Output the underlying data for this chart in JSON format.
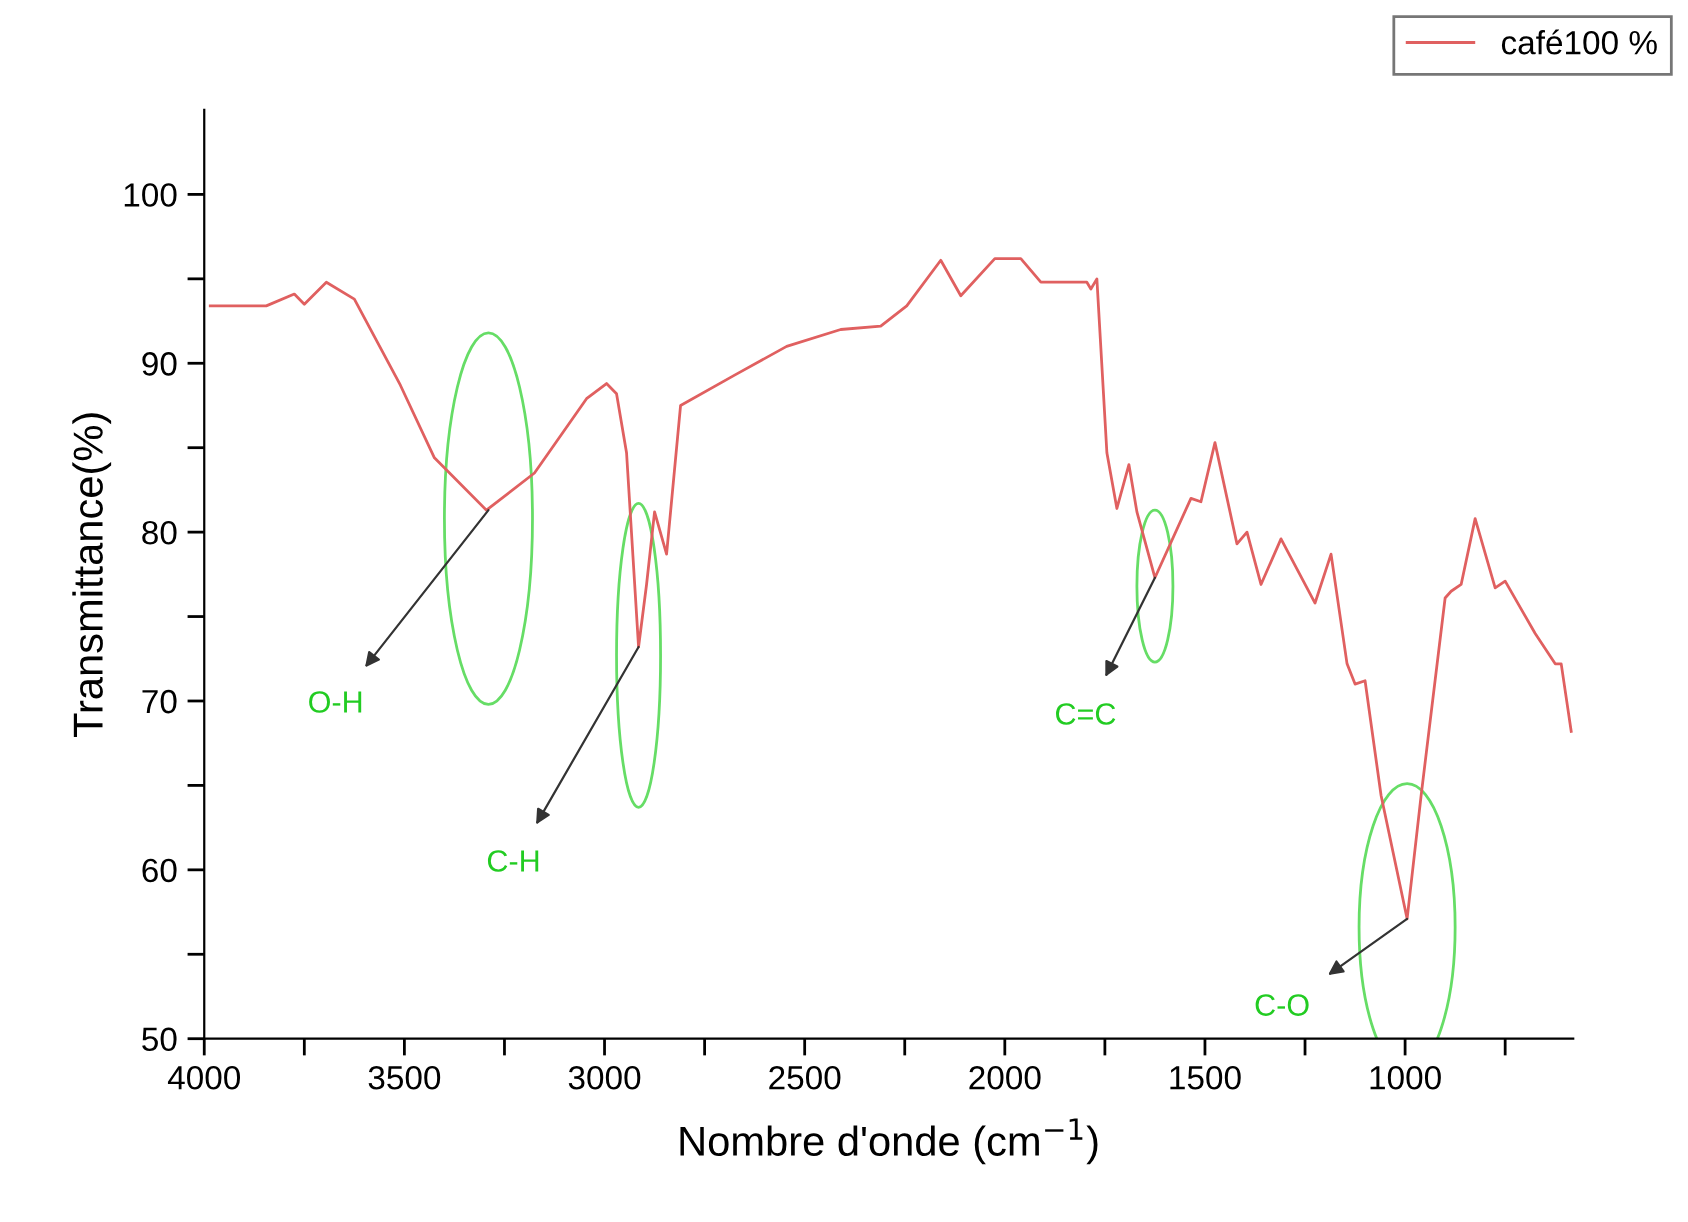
{
  "chart_data": {
    "type": "line",
    "xlabel": "Nombre d'onde (cm$^{−1}$)",
    "ylabel": "Transmittance(%)",
    "xlim": [
      4000,
      580
    ],
    "ylim": [
      50,
      105
    ],
    "xticks": [
      4000,
      {
        "value": 3750,
        "label": null
      },
      3500,
      {
        "value": 3250,
        "label": null
      },
      3000,
      {
        "value": 2750,
        "label": null
      },
      2500,
      {
        "value": 2250,
        "label": null
      },
      2000,
      {
        "value": 1750,
        "label": null
      },
      1500,
      {
        "value": 1250,
        "label": null
      },
      1000,
      {
        "value": 750,
        "label": null
      }
    ],
    "yticks": [
      50,
      {
        "value": 55,
        "label": null
      },
      60,
      {
        "value": 65,
        "label": null
      },
      70,
      {
        "value": 75,
        "label": null
      },
      80,
      {
        "value": 85,
        "label": null
      },
      90,
      {
        "value": 95,
        "label": null
      },
      100
    ],
    "grid": false,
    "legend": "top right",
    "line_style": "solid",
    "marker": "none",
    "series": [
      {
        "name": "café100 %",
        "color": "#e06060",
        "x": [
          3985,
          3845,
          3775,
          3750,
          3695,
          3625,
          3510,
          3425,
          3295,
          3175,
          3045,
          2995,
          2970,
          2945,
          2915,
          2895,
          2875,
          2845,
          2810,
          2675,
          2545,
          2410,
          2310,
          2245,
          2160,
          2110,
          2025,
          1960,
          1910,
          1795,
          1785,
          1770,
          1745,
          1720,
          1690,
          1670,
          1625,
          1535,
          1510,
          1475,
          1420,
          1395,
          1360,
          1310,
          1225,
          1185,
          1145,
          1125,
          1100,
          1060,
          995,
          960,
          900,
          885,
          860,
          825,
          775,
          750,
          675,
          625,
          610,
          585
        ],
        "values": [
          93.4,
          93.4,
          94.1,
          93.5,
          94.8,
          93.8,
          88.7,
          84.4,
          81.3,
          83.5,
          87.9,
          88.8,
          88.2,
          84.7,
          73.2,
          76.9,
          81.2,
          78.7,
          87.5,
          89.3,
          91.0,
          92.0,
          92.2,
          93.4,
          96.1,
          94.0,
          96.2,
          96.2,
          94.8,
          94.8,
          94.4,
          95.0,
          84.7,
          81.4,
          84.0,
          81.2,
          77.3,
          82.0,
          81.8,
          85.3,
          79.3,
          80.0,
          76.9,
          79.6,
          75.8,
          78.7,
          72.2,
          71.0,
          71.2,
          64.4,
          57.1,
          64.4,
          76.1,
          76.5,
          76.9,
          80.8,
          76.7,
          77.1,
          74.0,
          72.2,
          72.2,
          68.2
        ]
      }
    ],
    "annotations": [
      {
        "text": "O-H",
        "x": 3290,
        "y": 81.3
      },
      {
        "text": "C-H",
        "x": 2915,
        "y": 73.2
      },
      {
        "text": "C=C",
        "x": 1625,
        "y": 77.3
      },
      {
        "text": "C-O",
        "x": 995,
        "y": 57.1
      }
    ]
  }
}
